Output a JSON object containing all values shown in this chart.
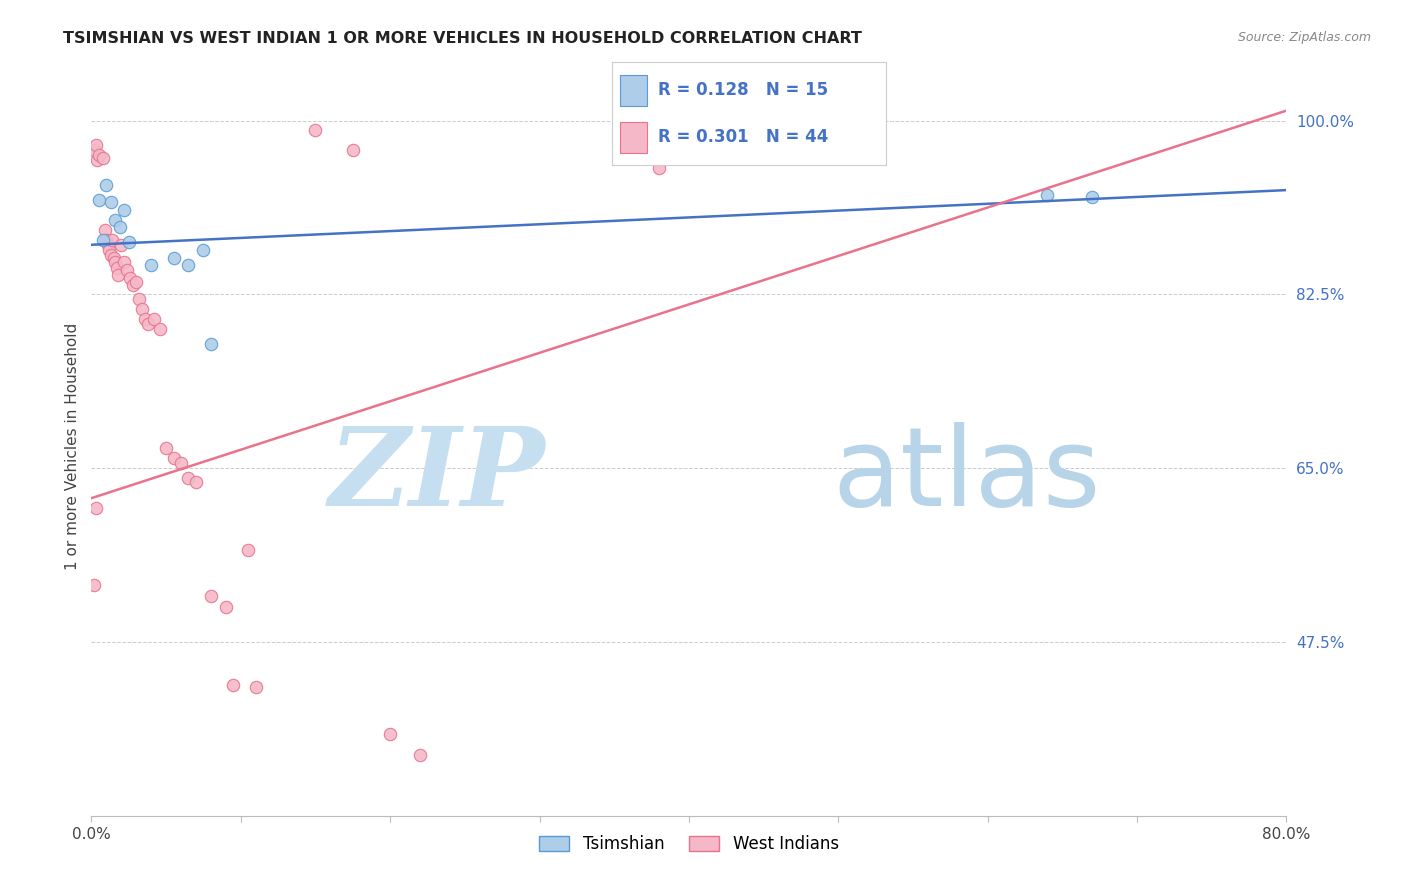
{
  "title": "TSIMSHIAN VS WEST INDIAN 1 OR MORE VEHICLES IN HOUSEHOLD CORRELATION CHART",
  "source": "Source: ZipAtlas.com",
  "ylabel": "1 or more Vehicles in Household",
  "xlim": [
    0.0,
    0.8
  ],
  "ylim": [
    0.3,
    1.045
  ],
  "xticks": [
    0.0,
    0.1,
    0.2,
    0.3,
    0.4,
    0.5,
    0.6,
    0.7,
    0.8
  ],
  "xticklabels": [
    "0.0%",
    "",
    "",
    "",
    "",
    "",
    "",
    "",
    "80.0%"
  ],
  "ytick_positions": [
    0.475,
    0.65,
    0.825,
    1.0
  ],
  "yticklabels": [
    "47.5%",
    "65.0%",
    "82.5%",
    "100.0%"
  ],
  "grid_color": "#cccccc",
  "bg_color": "#ffffff",
  "tsimshian_color": "#aecde8",
  "tsimshian_edge": "#5b9bd5",
  "west_indian_color": "#f4b8c8",
  "west_indian_edge": "#e8738a",
  "tsimshian_R": 0.128,
  "tsimshian_N": 15,
  "west_indian_R": 0.301,
  "west_indian_N": 44,
  "legend_label_ts": "Tsimshian",
  "legend_label_wi": "West Indians",
  "tsimshian_x": [
    0.005,
    0.01,
    0.013,
    0.016,
    0.019,
    0.022,
    0.025,
    0.04,
    0.055,
    0.065,
    0.075,
    0.08,
    0.64,
    0.67,
    0.008
  ],
  "tsimshian_y": [
    0.92,
    0.935,
    0.918,
    0.9,
    0.893,
    0.91,
    0.878,
    0.855,
    0.862,
    0.855,
    0.87,
    0.775,
    0.925,
    0.923,
    0.88
  ],
  "west_indian_x": [
    0.002,
    0.003,
    0.004,
    0.005,
    0.008,
    0.009,
    0.01,
    0.011,
    0.012,
    0.013,
    0.014,
    0.015,
    0.016,
    0.017,
    0.018,
    0.02,
    0.022,
    0.024,
    0.026,
    0.028,
    0.03,
    0.032,
    0.034,
    0.036,
    0.038,
    0.042,
    0.046,
    0.05,
    0.055,
    0.06,
    0.065,
    0.07,
    0.08,
    0.09,
    0.095,
    0.105,
    0.11,
    0.15,
    0.175,
    0.2,
    0.22,
    0.38,
    0.002,
    0.003
  ],
  "west_indian_y": [
    0.97,
    0.975,
    0.96,
    0.965,
    0.962,
    0.89,
    0.88,
    0.875,
    0.87,
    0.865,
    0.88,
    0.862,
    0.858,
    0.852,
    0.845,
    0.875,
    0.858,
    0.85,
    0.842,
    0.835,
    0.838,
    0.82,
    0.81,
    0.8,
    0.795,
    0.8,
    0.79,
    0.67,
    0.66,
    0.655,
    0.64,
    0.636,
    0.522,
    0.51,
    0.432,
    0.568,
    0.43,
    0.99,
    0.97,
    0.383,
    0.362,
    0.952,
    0.533,
    0.61
  ],
  "marker_size": 80,
  "line_width": 1.8,
  "blue_line_color": "#4472c4",
  "pink_line_color": "#e8738a",
  "ts_line_x0": 0.0,
  "ts_line_x1": 0.8,
  "ts_line_y0": 0.875,
  "ts_line_y1": 0.93,
  "wi_line_x0": 0.0,
  "wi_line_x1": 0.8,
  "wi_line_y0": 0.62,
  "wi_line_y1": 1.01,
  "watermark_zip": "ZIP",
  "watermark_atlas": "atlas",
  "watermark_color_zip": "#c8dff0",
  "watermark_color_atlas": "#c8dff0",
  "watermark_fontsize": 80
}
